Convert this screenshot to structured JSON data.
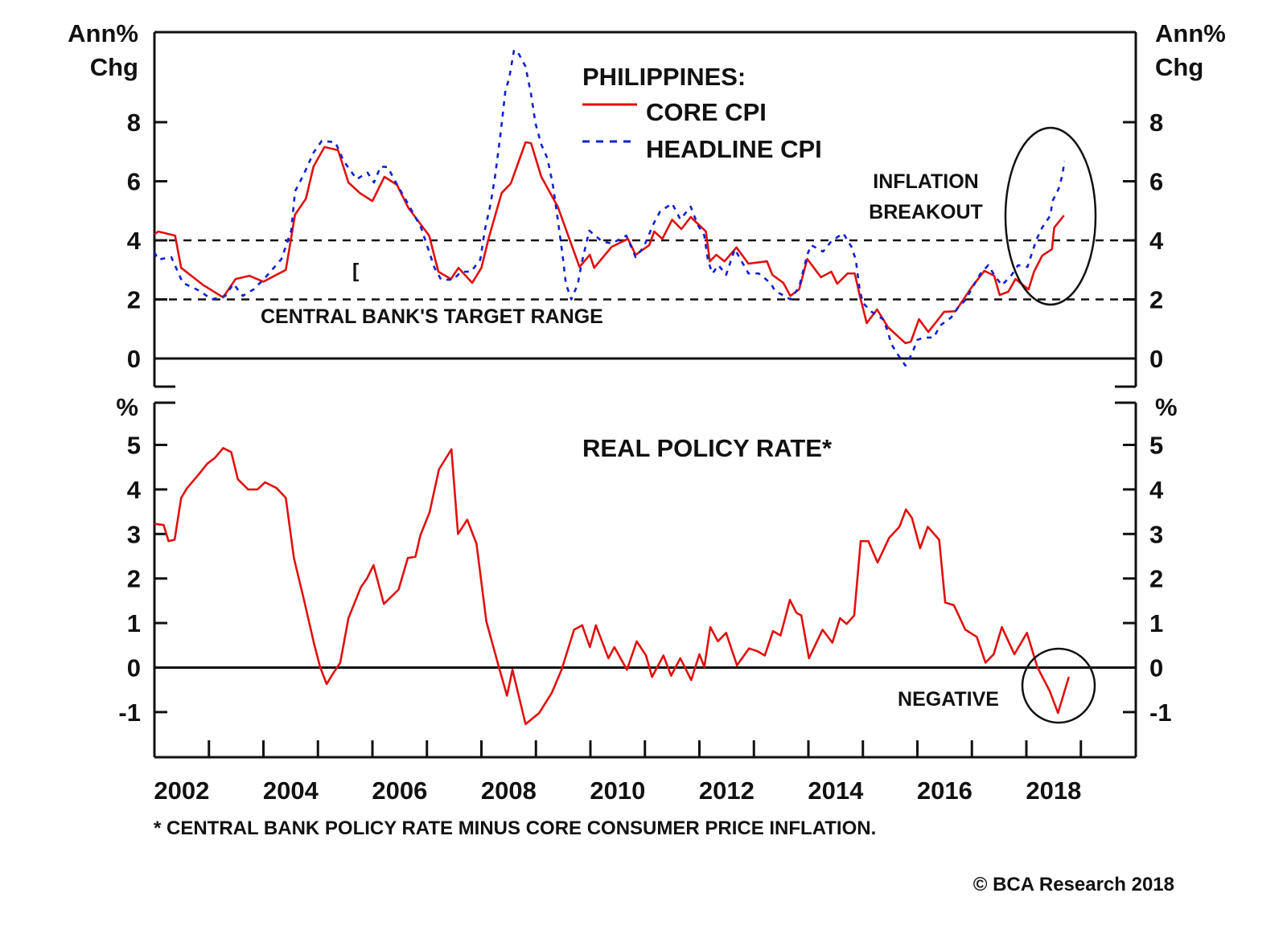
{
  "chart_data": [
    {
      "type": "line",
      "title": "PHILIPPINES:",
      "ylabel_left": [
        "Ann%",
        "Chg"
      ],
      "ylabel_right": [
        "Ann%",
        "Chg"
      ],
      "ylim": [
        -0.95,
        11.05
      ],
      "xlim": [
        2002.0,
        2020.0
      ],
      "yticks": [
        "0",
        "2",
        "4",
        "6",
        "8"
      ],
      "grid": false,
      "reference_lines": [
        {
          "value": 0,
          "style": "solid"
        },
        {
          "value": 2,
          "style": "dashed"
        },
        {
          "value": 4,
          "style": "dashed"
        }
      ],
      "legend_placement": "top-center",
      "series": [
        {
          "name": "CORE CPI",
          "color": "#e01010",
          "style": "solid",
          "x": [
            2002.0,
            2002.07,
            2002.38,
            2002.49,
            2002.9,
            2003.26,
            2003.49,
            2003.74,
            2004.0,
            2004.41,
            2004.58,
            2004.78,
            2004.92,
            2005.12,
            2005.37,
            2005.56,
            2005.77,
            2006.0,
            2006.22,
            2006.45,
            2006.66,
            2007.04,
            2007.21,
            2007.44,
            2007.58,
            2007.83,
            2008.0,
            2008.13,
            2008.37,
            2008.54,
            2008.81,
            2008.91,
            2009.1,
            2009.4,
            2009.8,
            2009.99,
            2010.07,
            2010.39,
            2010.69,
            2010.83,
            2011.08,
            2011.17,
            2011.32,
            2011.5,
            2011.67,
            2011.84,
            2012.12,
            2012.19,
            2012.31,
            2012.46,
            2012.68,
            2012.9,
            2013.24,
            2013.34,
            2013.54,
            2013.67,
            2013.83,
            2013.98,
            2014.23,
            2014.42,
            2014.53,
            2014.72,
            2014.85,
            2014.94,
            2015.07,
            2015.26,
            2015.46,
            2015.78,
            2015.88,
            2016.03,
            2016.2,
            2016.49,
            2016.7,
            2016.99,
            2017.23,
            2017.41,
            2017.51,
            2017.67,
            2017.8,
            2018.04,
            2018.14,
            2018.29,
            2018.47,
            2018.51,
            2018.69
          ],
          "values": [
            4.2,
            4.3,
            4.16,
            3.07,
            2.48,
            2.07,
            2.69,
            2.8,
            2.6,
            3.0,
            4.87,
            5.41,
            6.5,
            7.16,
            7.05,
            5.96,
            5.6,
            5.33,
            6.15,
            5.88,
            5.1,
            4.16,
            2.94,
            2.69,
            3.07,
            2.56,
            3.07,
            4.05,
            5.6,
            5.93,
            7.32,
            7.29,
            6.15,
            5.14,
            3.1,
            3.51,
            3.07,
            3.78,
            4.05,
            3.51,
            3.84,
            4.3,
            4.05,
            4.7,
            4.38,
            4.79,
            4.3,
            3.29,
            3.51,
            3.29,
            3.76,
            3.21,
            3.29,
            2.83,
            2.56,
            2.12,
            2.34,
            3.37,
            2.75,
            2.94,
            2.53,
            2.88,
            2.88,
            2.15,
            1.2,
            1.66,
            1.06,
            0.52,
            0.57,
            1.33,
            0.9,
            1.58,
            1.6,
            2.4,
            2.97,
            2.8,
            2.15,
            2.26,
            2.69,
            2.34,
            2.94,
            3.48,
            3.7,
            4.43,
            4.84
          ]
        },
        {
          "name": "HEADLINE CPI",
          "color": "#1020d0",
          "style": "dashed",
          "x": [
            2002.0,
            2002.07,
            2002.31,
            2002.52,
            2002.83,
            2003.05,
            2003.3,
            2003.45,
            2003.62,
            2003.82,
            2004.04,
            2004.33,
            2004.51,
            2004.58,
            2004.73,
            2004.92,
            2005.07,
            2005.32,
            2005.47,
            2005.71,
            2005.91,
            2006.03,
            2006.15,
            2006.28,
            2006.43,
            2006.65,
            2006.89,
            2007.14,
            2007.26,
            2007.48,
            2007.63,
            2007.81,
            2007.98,
            2008.06,
            2008.17,
            2008.25,
            2008.35,
            2008.44,
            2008.51,
            2008.6,
            2008.69,
            2008.81,
            2008.91,
            2008.99,
            2009.1,
            2009.21,
            2009.31,
            2009.4,
            2009.5,
            2009.55,
            2009.65,
            2009.77,
            2009.84,
            2009.98,
            2010.21,
            2010.39,
            2010.66,
            2010.83,
            2010.98,
            2011.16,
            2011.28,
            2011.5,
            2011.65,
            2011.84,
            2011.97,
            2012.09,
            2012.16,
            2012.24,
            2012.35,
            2012.49,
            2012.65,
            2012.9,
            2013.09,
            2013.3,
            2013.39,
            2013.67,
            2013.83,
            2013.98,
            2014.05,
            2014.27,
            2014.42,
            2014.64,
            2014.79,
            2014.87,
            2014.94,
            2015.0,
            2015.16,
            2015.37,
            2015.46,
            2015.52,
            2015.66,
            2015.78,
            2015.9,
            2016.0,
            2016.12,
            2016.3,
            2016.42,
            2016.62,
            2016.74,
            2016.89,
            2016.99,
            2017.16,
            2017.3,
            2017.41,
            2017.55,
            2017.73,
            2017.85,
            2018.02,
            2018.1,
            2018.19,
            2018.29,
            2018.44,
            2018.48,
            2018.59,
            2018.66,
            2018.7
          ],
          "values": [
            3.6,
            3.35,
            3.43,
            2.56,
            2.29,
            2.0,
            2.12,
            2.53,
            2.12,
            2.34,
            2.75,
            3.37,
            4.33,
            5.66,
            6.2,
            6.97,
            7.37,
            7.32,
            6.69,
            6.07,
            6.29,
            5.96,
            6.5,
            6.48,
            5.96,
            5.25,
            4.44,
            3.07,
            2.67,
            2.67,
            2.94,
            2.94,
            3.35,
            4.33,
            5.25,
            6.15,
            7.59,
            9.06,
            9.5,
            10.45,
            10.3,
            9.88,
            8.95,
            7.97,
            7.24,
            6.78,
            5.88,
            4.71,
            3.35,
            2.53,
            2.0,
            2.53,
            3.24,
            4.33,
            3.97,
            3.89,
            4.16,
            3.43,
            3.78,
            4.57,
            4.98,
            5.25,
            4.71,
            5.14,
            4.52,
            4.16,
            3.29,
            2.88,
            3.16,
            2.83,
            3.7,
            2.88,
            2.88,
            2.56,
            2.29,
            2.0,
            2.42,
            3.51,
            3.84,
            3.62,
            3.97,
            4.24,
            3.78,
            3.35,
            2.34,
            1.88,
            1.58,
            1.33,
            0.9,
            0.49,
            0.08,
            -0.24,
            0.16,
            0.63,
            0.71,
            0.71,
            1.12,
            1.39,
            1.71,
            2.0,
            2.34,
            2.88,
            3.16,
            2.83,
            2.48,
            2.83,
            3.16,
            3.1,
            3.56,
            4.05,
            4.43,
            4.84,
            5.33,
            5.74,
            6.2,
            6.69
          ]
        }
      ],
      "annotations": {
        "target_range": "CENTRAL BANK'S TARGET RANGE",
        "breakout_line1": "INFLATION",
        "breakout_line2": "BREAKOUT",
        "bracket_mark": "["
      }
    },
    {
      "type": "line",
      "title": "REAL POLICY RATE*",
      "ylabel_left": "%",
      "ylabel_right": "%",
      "ylim": [
        -2.0,
        5.95
      ],
      "xlim": [
        2002.0,
        2020.0
      ],
      "yticks": [
        "-1",
        "0",
        "1",
        "2",
        "3",
        "4",
        "5"
      ],
      "grid": false,
      "reference_lines": [
        {
          "value": 0,
          "style": "solid"
        }
      ],
      "xticks": [
        "2002",
        "2004",
        "2006",
        "2008",
        "2010",
        "2012",
        "2014",
        "2016",
        "2018"
      ],
      "series": [
        {
          "color": "#e01010",
          "style": "solid",
          "x": [
            2002.0,
            2002.17,
            2002.26,
            2002.37,
            2002.49,
            2002.6,
            2002.8,
            2002.97,
            2003.11,
            2003.26,
            2003.41,
            2003.53,
            2003.72,
            2003.89,
            2004.03,
            2004.24,
            2004.41,
            2004.56,
            2004.75,
            2004.93,
            2005.04,
            2005.16,
            2005.27,
            2005.41,
            2005.56,
            2005.79,
            2005.9,
            2006.02,
            2006.21,
            2006.48,
            2006.65,
            2006.79,
            2006.88,
            2007.05,
            2007.22,
            2007.45,
            2007.57,
            2007.74,
            2007.91,
            2008.09,
            2008.32,
            2008.47,
            2008.57,
            2008.81,
            2009.06,
            2009.29,
            2009.47,
            2009.7,
            2009.85,
            2009.99,
            2010.1,
            2010.33,
            2010.44,
            2010.67,
            2010.85,
            2011.02,
            2011.13,
            2011.34,
            2011.48,
            2011.65,
            2011.85,
            2012.0,
            2012.09,
            2012.2,
            2012.34,
            2012.49,
            2012.69,
            2012.91,
            2013.06,
            2013.2,
            2013.35,
            2013.49,
            2013.66,
            2013.78,
            2013.87,
            2014.01,
            2014.26,
            2014.44,
            2014.58,
            2014.7,
            2014.84,
            2014.96,
            2015.1,
            2015.27,
            2015.48,
            2015.67,
            2015.79,
            2015.9,
            2016.05,
            2016.19,
            2016.4,
            2016.51,
            2016.67,
            2016.88,
            2017.09,
            2017.25,
            2017.4,
            2017.55,
            2017.78,
            2018.01,
            2018.2,
            2018.43,
            2018.58,
            2018.78
          ],
          "values": [
            3.23,
            3.2,
            2.84,
            2.87,
            3.81,
            4.03,
            4.32,
            4.58,
            4.71,
            4.93,
            4.84,
            4.23,
            4.0,
            4.0,
            4.16,
            4.03,
            3.81,
            2.46,
            1.49,
            0.53,
            0.01,
            -0.37,
            -0.15,
            0.11,
            1.11,
            1.81,
            2.0,
            2.3,
            1.43,
            1.75,
            2.46,
            2.49,
            2.97,
            3.49,
            4.45,
            4.9,
            3.0,
            3.32,
            2.78,
            1.04,
            0.01,
            -0.63,
            -0.05,
            -1.27,
            -1.02,
            -0.57,
            -0.05,
            0.85,
            0.95,
            0.46,
            0.95,
            0.21,
            0.46,
            -0.05,
            0.59,
            0.27,
            -0.21,
            0.27,
            -0.18,
            0.21,
            -0.28,
            0.3,
            0.01,
            0.91,
            0.59,
            0.78,
            0.05,
            0.43,
            0.37,
            0.27,
            0.82,
            0.72,
            1.52,
            1.23,
            1.17,
            0.21,
            0.85,
            0.56,
            1.11,
            0.98,
            1.17,
            2.84,
            2.84,
            2.36,
            2.91,
            3.16,
            3.55,
            3.36,
            2.68,
            3.16,
            2.87,
            1.46,
            1.4,
            0.85,
            0.69,
            0.11,
            0.3,
            0.91,
            0.3,
            0.78,
            0.01,
            -0.53,
            -1.02,
            -0.21
          ]
        }
      ],
      "annotations": {
        "negative": "NEGATIVE"
      }
    }
  ],
  "footnote": "* CENTRAL BANK POLICY RATE MINUS CORE CONSUMER PRICE INFLATION.",
  "copyright": "© BCA Research 2018"
}
